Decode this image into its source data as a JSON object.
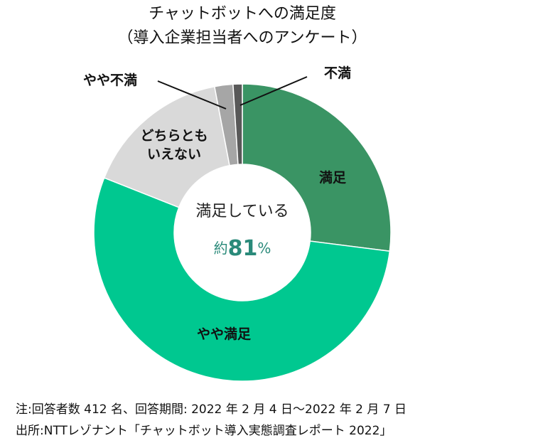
{
  "chart_data": {
    "type": "donut",
    "title": [
      "チャットボットへの満足度",
      "（導入企業担当者へのアンケート）"
    ],
    "categories": [
      "満足",
      "やや満足",
      "どちらとも\nいえない",
      "やや不満",
      "不満"
    ],
    "values": [
      27,
      54,
      16,
      2,
      1
    ],
    "colors": [
      "#3a9464",
      "#00c890",
      "#d9d9d9",
      "#a6a6a6",
      "#595959"
    ],
    "center_text": "満足している",
    "center_prefix": "約",
    "center_value": 81,
    "center_unit": "%",
    "notes": [
      "注:回答者数 412 名、回答期間:  2022 年 2 月 4 日～2022 年 2 月 7 日",
      "出所:NTTレゾナント「チャットボット導入実態調査レポート 2022」"
    ]
  }
}
